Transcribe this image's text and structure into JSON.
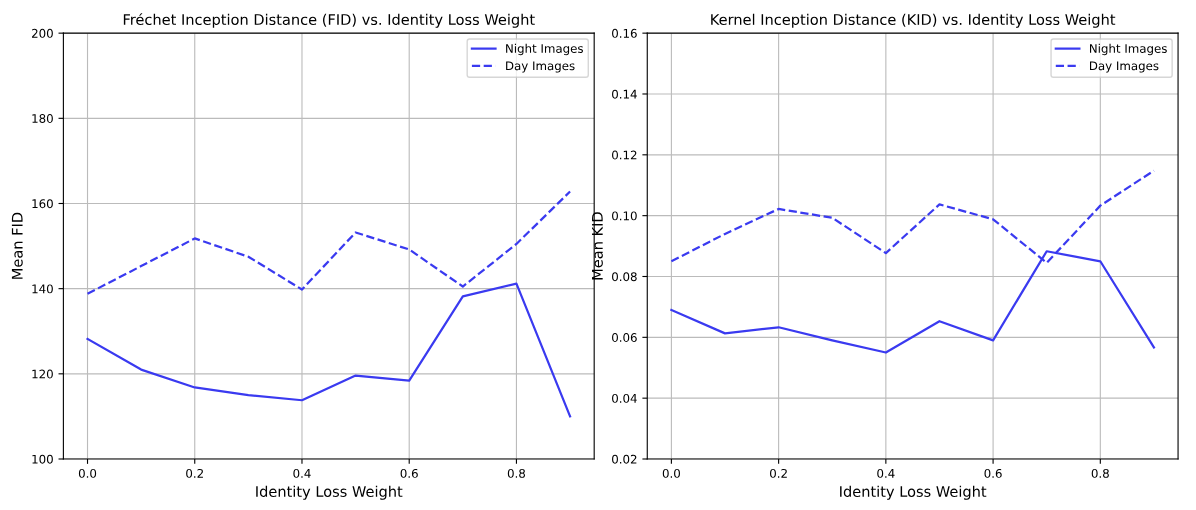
{
  "chart_data": [
    {
      "type": "line",
      "title": "Fréchet Inception Distance (FID) vs. Identity Loss Weight",
      "xlabel": "Identity Loss Weight",
      "ylabel": "Mean FID",
      "x": [
        0.0,
        0.1,
        0.2,
        0.3,
        0.4,
        0.5,
        0.6,
        0.7,
        0.8,
        0.9
      ],
      "series": [
        {
          "name": "Night Images",
          "color": "#3a3af0",
          "line_style": "solid",
          "values": [
            128.2,
            121.0,
            116.8,
            115.0,
            113.8,
            119.6,
            118.4,
            138.2,
            141.2,
            110.0
          ]
        },
        {
          "name": "Day Images",
          "color": "#3a3af0",
          "line_style": "dashed",
          "values": [
            138.8,
            145.3,
            151.8,
            147.5,
            139.8,
            153.2,
            149.2,
            140.5,
            150.5,
            162.8
          ]
        }
      ],
      "xlim": [
        -0.045,
        0.945
      ],
      "xticks": [
        {
          "value": 0,
          "label": "0.0"
        },
        0.2,
        0.4,
        0.6,
        0.8
      ],
      "ylim": [
        100,
        200
      ],
      "yticks": [
        100,
        120,
        140,
        160,
        180,
        200
      ],
      "grid": true,
      "legend": "top right"
    },
    {
      "type": "line",
      "title": "Kernel Inception Distance (KID) vs. Identity Loss Weight",
      "xlabel": "Identity Loss Weight",
      "ylabel": "Mean KID",
      "x": [
        0.0,
        0.1,
        0.2,
        0.3,
        0.4,
        0.5,
        0.6,
        0.7,
        0.8,
        0.9
      ],
      "series": [
        {
          "name": "Night Images",
          "color": "#3a3af0",
          "line_style": "solid",
          "values": [
            0.069,
            0.0613,
            0.0633,
            0.059,
            0.055,
            0.0653,
            0.059,
            0.0883,
            0.085,
            0.0567
          ]
        },
        {
          "name": "Day Images",
          "color": "#3a3af0",
          "line_style": "dashed",
          "values": [
            0.085,
            0.094,
            0.1022,
            0.0993,
            0.0877,
            0.1037,
            0.0988,
            0.0845,
            0.1033,
            0.1148
          ]
        }
      ],
      "xlim": [
        -0.045,
        0.945
      ],
      "xticks": [
        {
          "value": 0,
          "label": "0.0"
        },
        0.2,
        0.4,
        0.6,
        0.8
      ],
      "ylim": [
        0.02,
        0.16
      ],
      "yticks": [
        0.02,
        0.04,
        0.06,
        0.08,
        {
          "value": 0.1,
          "label": "0.10"
        },
        0.12,
        0.14,
        0.16
      ],
      "grid": true,
      "legend": "top right"
    }
  ]
}
